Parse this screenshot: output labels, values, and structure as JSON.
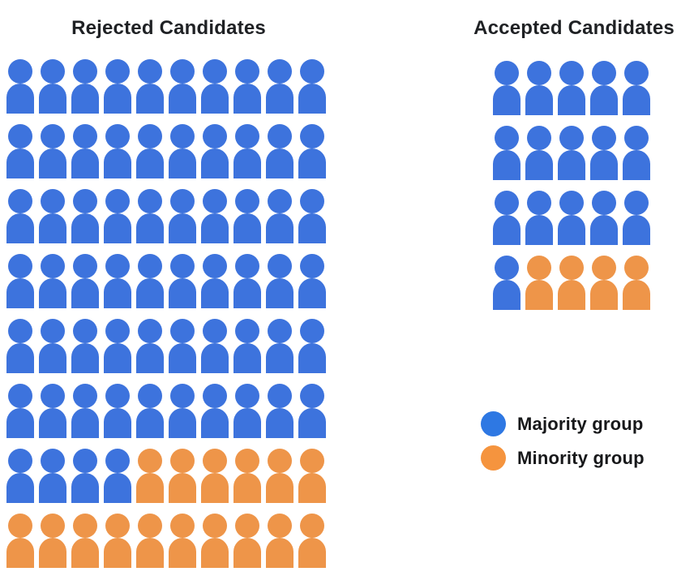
{
  "colors": {
    "majority": "#3D73DD",
    "minority": "#EE9549",
    "legend_majority": "#2E78E3",
    "legend_minority": "#F5943E",
    "title_text": "#1F2124",
    "background": "#FFFFFF"
  },
  "panels": {
    "rejected": {
      "title": "Rejected Candidates"
    },
    "accepted": {
      "title": "Accepted Candidates"
    }
  },
  "legend": {
    "items": [
      {
        "id": "majority",
        "label": "Majority group"
      },
      {
        "id": "minority",
        "label": "Minority group"
      }
    ]
  },
  "chart_data": {
    "type": "pictogram",
    "icon": "person",
    "categories_key": {
      "M": "Majority group",
      "m": "Minority group"
    },
    "panels": [
      {
        "id": "rejected",
        "title": "Rejected Candidates",
        "columns": 10,
        "rows": [
          "MMMMMMMMMM",
          "MMMMMMMMMM",
          "MMMMMMMMMM",
          "MMMMMMMMMM",
          "MMMMMMMMMM",
          "MMMMMMMMMM",
          "MMMMmmmmmm",
          "mmmmmmmmmm"
        ],
        "counts": {
          "majority_group": 64,
          "minority_group": 16,
          "total": 80
        }
      },
      {
        "id": "accepted",
        "title": "Accepted Candidates",
        "columns": 5,
        "rows": [
          "MMMMM",
          "MMMMM",
          "MMMMM",
          "Mmmmm"
        ],
        "counts": {
          "majority_group": 16,
          "minority_group": 4,
          "total": 20
        }
      }
    ],
    "legend": [
      {
        "label": "Majority group",
        "color": "#2E78E3",
        "category": "M"
      },
      {
        "label": "Minority group",
        "color": "#F5943E",
        "category": "m"
      }
    ],
    "legend_position": "right-middle",
    "grid": false
  }
}
